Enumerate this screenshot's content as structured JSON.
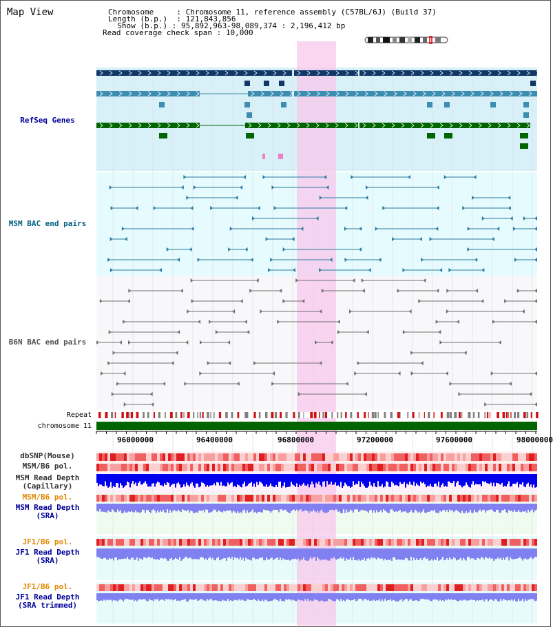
{
  "header": {
    "title": "Map View",
    "chromosome_label": "Chromosome",
    "chromosome_value": "Chromosome 11, reference assembly (C57BL/6J) (Build 37)",
    "length_label": "Length (b.p.)",
    "length_value": "121,843,856",
    "show_label": "Show (b.p.)",
    "show_value": "95,892,963-98,089,374 : 2,196,412 bp",
    "coverage_label": "Read coverage check span",
    "coverage_value": "10,000"
  },
  "tracks": {
    "refseq": "RefSeq Genes",
    "msm_bac": "MSM BAC end pairs",
    "b6n_bac": "B6N BAC end pairs",
    "repeat": "Repeat",
    "chromosome": "chromosome 11",
    "dbsnp": "dbSNP(Mouse)",
    "msm_b6_pol": "MSM/B6 pol.",
    "msm_depth_cap_1": "MSM Read Depth",
    "msm_depth_cap_2": "(Capillary)",
    "msm_b6_pol_sra": "MSM/B6 pol.",
    "msm_depth_sra_1": "MSM Read Depth",
    "msm_depth_sra_2": "(SRA)",
    "jf1_b6_pol": "JF1/B6 pol.",
    "jf1_depth_sra_1": "JF1 Read Depth",
    "jf1_depth_sra_2": "(SRA)",
    "jf1_b6_pol_trim": "JF1/B6 pol.",
    "jf1_depth_trim_1": "JF1 Read Depth",
    "jf1_depth_trim_2": "(SRA trimmed)"
  },
  "axis": {
    "ticks": [
      "96000000",
      "96400000",
      "96800000",
      "97200000",
      "97600000",
      "98000000"
    ]
  },
  "colors": {
    "refseq_dark": "#0f3768",
    "refseq_mid": "#3d8db0",
    "refseq_green": "#006400",
    "highlight": "#f8c8ec",
    "msm_label": "#006080",
    "b6n_label": "#505050",
    "depth_blue": "#0000ee",
    "depth_lilac": "#8080f0",
    "pol_label": "#e08800",
    "label_blue": "#000099"
  }
}
